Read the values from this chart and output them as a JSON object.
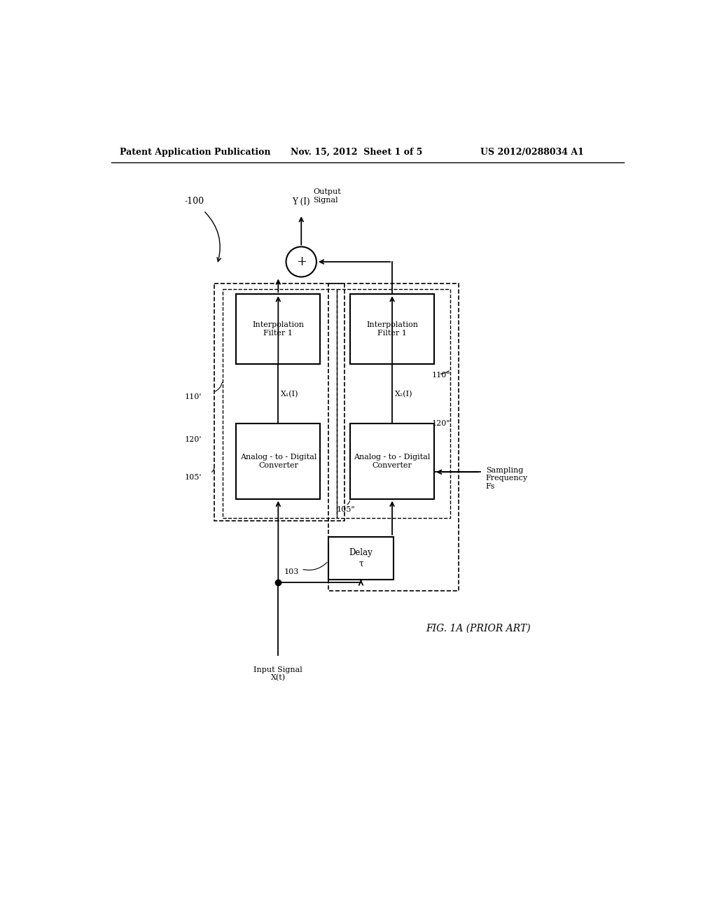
{
  "bg_color": "#ffffff",
  "header_left": "Patent Application Publication",
  "header_mid": "Nov. 15, 2012  Sheet 1 of 5",
  "header_right": "US 2012/0288034 A1",
  "fig_label": "FIG. 1A",
  "fig_label2": "(PRIOR ART)",
  "ref_100": "-100",
  "ref_103": "103",
  "ref_105_left": "105'",
  "ref_105_right": "105\"",
  "ref_110_left": "110'",
  "ref_110_right": "110\"",
  "ref_120_left": "120'",
  "ref_120_right": "120\"",
  "box1_adc_label": "Analog - to - Digital\nConverter",
  "box2_adc_label": "Analog - to - Digital\nConverter",
  "box1_interp_label": "Interpolation\nFilter 1",
  "box2_interp_label": "Interpolation\nFilter 1",
  "delay_label": "Delay\nτ",
  "input_label": "Input Signal\nX(t)",
  "output_label": "Output\nSignal",
  "y_label": "Y (I)",
  "x1_label": "X₁(I)",
  "x2_label": "X₂(I)",
  "sampling_label": "Sampling\nFrequency\nFs"
}
